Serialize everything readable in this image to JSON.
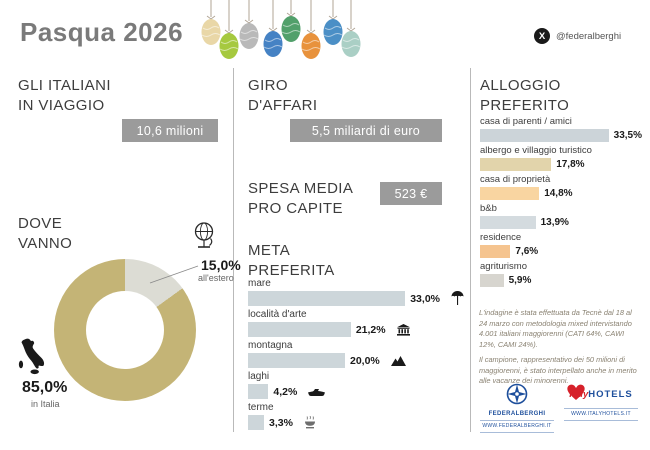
{
  "header": {
    "title": "Pasqua 2026",
    "social_handle": "@federalberghi",
    "x_logo_glyph": "X"
  },
  "decor": {
    "egg_colors": [
      "#e9d7a7",
      "#a6c93f",
      "#b9b9b9",
      "#4582c4",
      "#52a06b",
      "#e8923c",
      "#4b8fc6",
      "#aacfc5"
    ]
  },
  "sections": {
    "travelers": {
      "heading": [
        "GLI ITALIANI",
        "IN VIAGGIO"
      ],
      "badge": "10,6 milioni"
    },
    "business": {
      "heading": [
        "GIRO",
        "D'AFFARI"
      ],
      "badge": "5,5 miliardi di euro"
    },
    "spend": {
      "heading": [
        "SPESA MEDIA",
        "PRO CAPITE"
      ],
      "badge": "523 €"
    },
    "destinations": {
      "heading": [
        "DOVE",
        "VANNO"
      ]
    },
    "meta": {
      "heading": [
        "META",
        "PREFERITA"
      ]
    },
    "alloggio": {
      "heading": [
        "ALLOGGIO",
        "PREFERITO"
      ]
    }
  },
  "chart_data": [
    {
      "type": "pie",
      "title": "DOVE VANNO",
      "labels": [
        "in Italia",
        "all'estero"
      ],
      "values": [
        85.0,
        15.0
      ],
      "value_labels": [
        "85,0%",
        "15,0%"
      ],
      "colors": [
        "#c4b476",
        "#dcdcd4"
      ],
      "donut": true,
      "legend_position": "callout"
    },
    {
      "type": "bar",
      "title": "META PREFERITA",
      "orientation": "horizontal",
      "categories": [
        "mare",
        "località d'arte",
        "montagna",
        "laghi",
        "terme"
      ],
      "values": [
        33.0,
        21.2,
        20.0,
        4.2,
        3.3
      ],
      "value_labels": [
        "33,0%",
        "21,2%",
        "20,0%",
        "4,2%",
        "3,3%"
      ],
      "bar_color": "#cdd6da",
      "icons": [
        "beach-umbrella",
        "museum",
        "mountain",
        "motorboat",
        "thermal-bath"
      ],
      "xlim": [
        0,
        45
      ],
      "grid": false
    },
    {
      "type": "bar",
      "title": "ALLOGGIO PREFERITO",
      "orientation": "horizontal",
      "categories": [
        "casa di parenti / amici",
        "albergo e villaggio turistico",
        "casa di proprietà",
        "b&b",
        "residence",
        "agriturismo"
      ],
      "values": [
        33.5,
        17.8,
        14.8,
        13.9,
        7.6,
        5.9
      ],
      "value_labels": [
        "33,5%",
        "17,8%",
        "14,8%",
        "13,9%",
        "7,6%",
        "5,9%"
      ],
      "bar_colors": [
        "#ccd4d9",
        "#e2d4ab",
        "#f9d5a1",
        "#d4dbdf",
        "#f5c48f",
        "#d7d5cf"
      ],
      "xlim": [
        0,
        40
      ],
      "grid": false
    }
  ],
  "footnote": {
    "para1": "L'indagine è stata effettuata da Tecnè dal 18 al 24 marzo con metodologia mixed intervistando 4.001 italiani maggiorenni (CATI 64%, CAWI 12%, CAMI 24%).",
    "para2": "Il campione, rappresentativo dei 50 milioni di maggiorenni, è stato interpellato anche in merito alle vacanze dei minorenni."
  },
  "logos": {
    "federalberghi": {
      "name": "FEDERALBERGHI",
      "url": "WWW.FEDERALBERGHI.IT",
      "color": "#1e4f9c"
    },
    "italyhotels": {
      "name_italy": "Italy",
      "name_hotels": "HOTELS",
      "url": "WWW.ITALYHOTELS.IT",
      "heart_color": "#d6212a"
    }
  },
  "colors": {
    "title": "#7a7a7a",
    "heading": "#3d3d3d",
    "badge_bg": "#9b9b9b",
    "divider": "#b9b9b9"
  }
}
